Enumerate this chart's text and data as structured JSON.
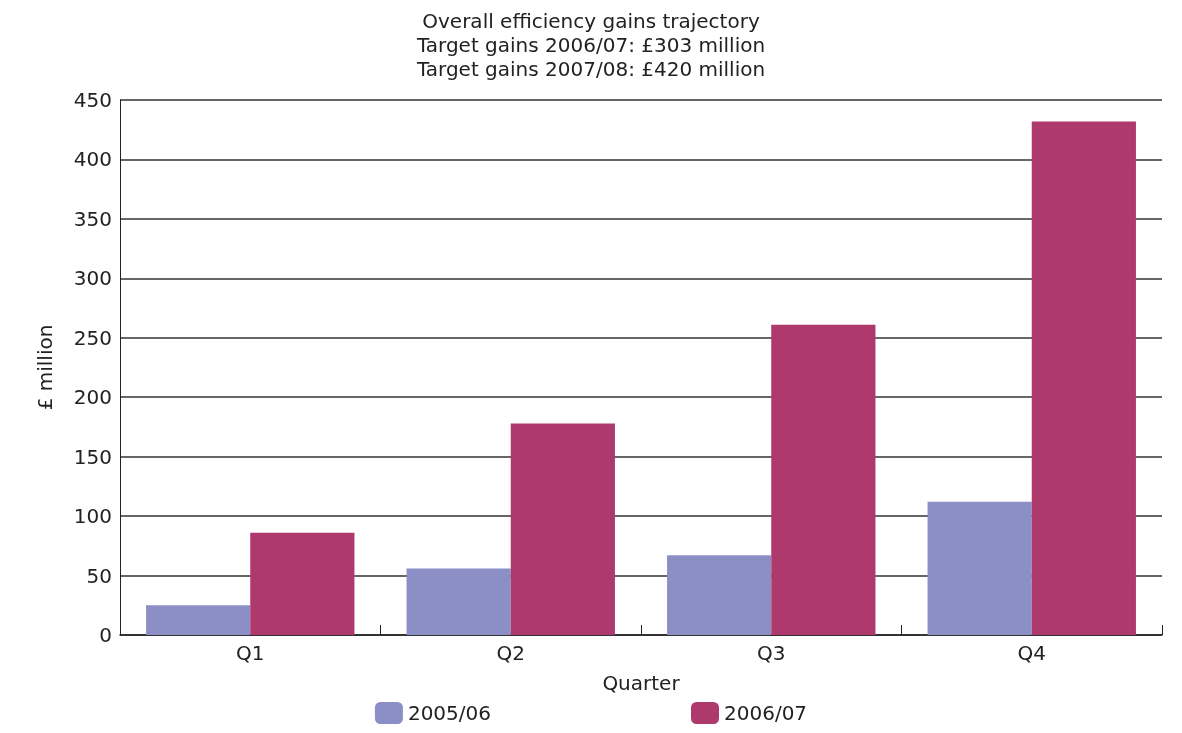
{
  "chart_data": {
    "type": "bar",
    "title": "Overall efficiency gains trajectory\nTarget gains 2006/07: £303 million\nTarget gains 2007/08: £420 million",
    "xlabel": "Quarter",
    "ylabel": "£ million",
    "categories": [
      "Q1",
      "Q2",
      "Q3",
      "Q4"
    ],
    "series": [
      {
        "name": "2005/06",
        "color": "#8b8fc5",
        "values": [
          25,
          56,
          67,
          112
        ]
      },
      {
        "name": "2006/07",
        "color": "#ae396d",
        "values": [
          86,
          178,
          261,
          432
        ]
      }
    ],
    "ylim": [
      0,
      450
    ],
    "yticks": [
      0,
      50,
      100,
      150,
      200,
      250,
      300,
      350,
      400,
      450
    ],
    "grid": "y",
    "legend": "bottom"
  }
}
